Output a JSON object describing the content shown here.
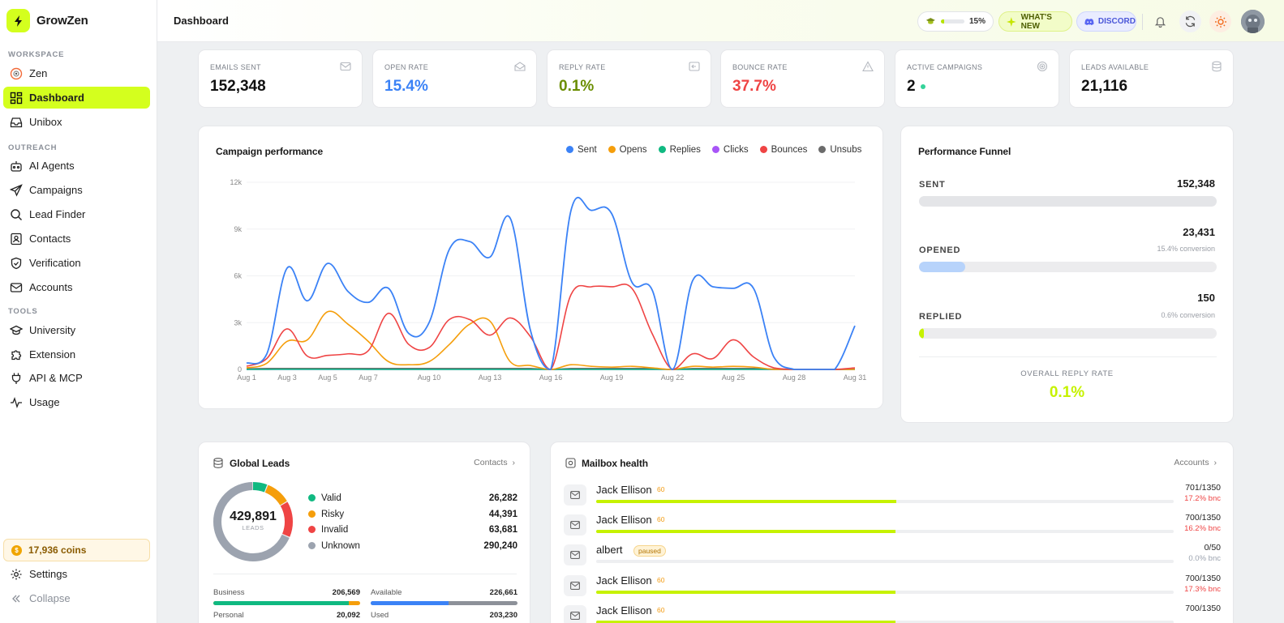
{
  "brand": {
    "name": "GrowZen"
  },
  "sidebar": {
    "sections": {
      "workspace": "WORKSPACE",
      "outreach": "OUTREACH",
      "tools": "TOOLS"
    },
    "items": [
      {
        "label": "Zen",
        "icon": "zen-icon"
      },
      {
        "label": "Dashboard",
        "icon": "dashboard-icon",
        "active": true
      },
      {
        "label": "Unibox",
        "icon": "inbox-icon"
      },
      {
        "label": "AI Agents",
        "icon": "robot-icon"
      },
      {
        "label": "Campaigns",
        "icon": "send-icon"
      },
      {
        "label": "Lead Finder",
        "icon": "search-icon"
      },
      {
        "label": "Contacts",
        "icon": "contacts-icon"
      },
      {
        "label": "Verification",
        "icon": "shield-check-icon"
      },
      {
        "label": "Accounts",
        "icon": "mail-icon"
      },
      {
        "label": "University",
        "icon": "graduation-icon"
      },
      {
        "label": "Extension",
        "icon": "puzzle-icon"
      },
      {
        "label": "API & MCP",
        "icon": "plug-icon"
      },
      {
        "label": "Usage",
        "icon": "activity-icon"
      }
    ],
    "coins": "17,936 coins",
    "settings": "Settings",
    "collapse": "Collapse"
  },
  "topbar": {
    "title": "Dashboard",
    "progress_pct": "15%",
    "progress_fraction": 0.15,
    "whats_new": "WHAT'S NEW",
    "discord": "DISCORD"
  },
  "stats": [
    {
      "label": "EMAILS SENT",
      "value": "152,348",
      "color": "#111111",
      "icon": "mail-icon"
    },
    {
      "label": "OPEN RATE",
      "value": "15.4%",
      "color": "#3b82f6",
      "icon": "mail-open-icon"
    },
    {
      "label": "REPLY RATE",
      "value": "0.1%",
      "color": "#6b8e00",
      "icon": "reply-icon"
    },
    {
      "label": "BOUNCE RATE",
      "value": "37.7%",
      "color": "#ef4444",
      "icon": "warning-icon"
    },
    {
      "label": "ACTIVE CAMPAIGNS",
      "value": "2",
      "color": "#111111",
      "icon": "target-icon"
    },
    {
      "label": "LEADS AVAILABLE",
      "value": "21,116",
      "color": "#111111",
      "icon": "database-icon"
    }
  ],
  "campaign": {
    "title": "Campaign performance",
    "legend": [
      {
        "name": "Sent",
        "color": "#3b82f6"
      },
      {
        "name": "Opens",
        "color": "#f59e0b"
      },
      {
        "name": "Replies",
        "color": "#10b981"
      },
      {
        "name": "Clicks",
        "color": "#a855f7"
      },
      {
        "name": "Bounces",
        "color": "#ef4444"
      },
      {
        "name": "Unsubs",
        "color": "#6b6b6b"
      }
    ]
  },
  "chart_data": {
    "type": "line",
    "x": [
      "Aug 1",
      "Aug 2",
      "Aug 3",
      "Aug 4",
      "Aug 5",
      "Aug 6",
      "Aug 7",
      "Aug 8",
      "Aug 9",
      "Aug 10",
      "Aug 11",
      "Aug 12",
      "Aug 13",
      "Aug 14",
      "Aug 15",
      "Aug 16",
      "Aug 17",
      "Aug 18",
      "Aug 19",
      "Aug 20",
      "Aug 21",
      "Aug 22",
      "Aug 23",
      "Aug 24",
      "Aug 25",
      "Aug 26",
      "Aug 27",
      "Aug 28",
      "Aug 29",
      "Aug 30",
      "Aug 31"
    ],
    "x_tick_labels": [
      "Aug 1",
      "Aug 3",
      "Aug 5",
      "Aug 7",
      "Aug 10",
      "Aug 13",
      "Aug 16",
      "Aug 19",
      "Aug 22",
      "Aug 25",
      "Aug 28",
      "Aug 31"
    ],
    "y_tick_labels": [
      "0",
      "3k",
      "6k",
      "9k",
      "12k"
    ],
    "ylim": [
      0,
      12000
    ],
    "grid": true,
    "legend_position": "top-right",
    "series": [
      {
        "name": "Sent",
        "color": "#3b82f6",
        "values": [
          400,
          1000,
          6500,
          4400,
          6800,
          5000,
          4300,
          5200,
          2300,
          3000,
          7700,
          8200,
          7200,
          9700,
          2500,
          0,
          10200,
          10200,
          10000,
          5600,
          5100,
          0,
          5700,
          5300,
          5200,
          5200,
          800,
          0,
          0,
          0,
          2800
        ]
      },
      {
        "name": "Opens",
        "color": "#f59e0b",
        "values": [
          100,
          400,
          1800,
          1900,
          3700,
          2900,
          1800,
          500,
          300,
          500,
          1600,
          2900,
          3100,
          500,
          250,
          0,
          300,
          200,
          150,
          200,
          100,
          0,
          200,
          150,
          200,
          150,
          0,
          0,
          0,
          0,
          0
        ]
      },
      {
        "name": "Replies",
        "color": "#10b981",
        "values": [
          5,
          5,
          10,
          10,
          10,
          10,
          5,
          5,
          5,
          5,
          5,
          5,
          5,
          5,
          5,
          0,
          5,
          5,
          5,
          5,
          5,
          0,
          5,
          5,
          5,
          5,
          0,
          0,
          0,
          0,
          0
        ]
      },
      {
        "name": "Clicks",
        "color": "#a855f7",
        "values": [
          0,
          0,
          0,
          0,
          0,
          0,
          0,
          0,
          0,
          0,
          0,
          0,
          0,
          0,
          0,
          0,
          0,
          0,
          0,
          0,
          0,
          0,
          0,
          0,
          0,
          0,
          0,
          0,
          0,
          0,
          0
        ]
      },
      {
        "name": "Bounces",
        "color": "#ef4444",
        "values": [
          200,
          700,
          2600,
          850,
          900,
          1000,
          1200,
          3600,
          1600,
          1400,
          3200,
          3200,
          2200,
          3300,
          2100,
          0,
          4800,
          5300,
          5300,
          5200,
          2300,
          0,
          1000,
          700,
          1900,
          800,
          100,
          0,
          0,
          0,
          100
        ]
      },
      {
        "name": "Unsubs",
        "color": "#6b6b6b",
        "values": [
          40,
          60,
          60,
          60,
          60,
          60,
          60,
          60,
          60,
          60,
          60,
          60,
          60,
          60,
          60,
          0,
          60,
          60,
          60,
          60,
          60,
          0,
          60,
          60,
          60,
          60,
          20,
          0,
          0,
          0,
          20
        ]
      }
    ]
  },
  "funnel": {
    "title": "Performance Funnel",
    "stages": [
      {
        "label": "SENT",
        "value": "152,348",
        "conversion": "",
        "fraction": 1.0,
        "color": "#e4e5e8"
      },
      {
        "label": "OPENED",
        "value": "23,431",
        "conversion": "15.4% conversion",
        "fraction": 0.154,
        "color": "#b7d3fb"
      },
      {
        "label": "REPLIED",
        "value": "150",
        "conversion": "0.6% conversion",
        "fraction": 0.006,
        "color": "#c6f200"
      }
    ],
    "overall_label": "OVERALL REPLY RATE",
    "overall_value": "0.1%"
  },
  "global_leads": {
    "title": "Global Leads",
    "link": "Contacts",
    "total": "429,891",
    "total_label": "LEADS",
    "rows": [
      {
        "name": "Valid",
        "value": "26,282",
        "num": 26282,
        "color": "#10b981"
      },
      {
        "name": "Risky",
        "value": "44,391",
        "num": 44391,
        "color": "#f59e0b"
      },
      {
        "name": "Invalid",
        "value": "63,681",
        "num": 63681,
        "color": "#ef4444"
      },
      {
        "name": "Unknown",
        "value": "290,240",
        "num": 290240,
        "color": "#9ca3af"
      }
    ],
    "business": {
      "label": "Business",
      "value": "206,569",
      "fraction": 0.92
    },
    "available": {
      "label": "Available",
      "value": "226,661",
      "fraction": 0.53
    },
    "personal": {
      "label": "Personal",
      "value": "20,092"
    },
    "used": {
      "label": "Used",
      "value": "203,230"
    }
  },
  "mailbox": {
    "title": "Mailbox health",
    "link": "Accounts",
    "rows": [
      {
        "name": "Jack Ellison",
        "badge": "60",
        "count": "701/1350",
        "bnc": "17.2% bnc",
        "fraction": 0.519,
        "bnc_color": "#ef4444",
        "paused": false
      },
      {
        "name": "Jack Ellison",
        "badge": "60",
        "count": "700/1350",
        "bnc": "16.2% bnc",
        "fraction": 0.518,
        "bnc_color": "#ef4444",
        "paused": false
      },
      {
        "name": "albert",
        "badge": "paused",
        "count": "0/50",
        "bnc": "0.0% bnc",
        "fraction": 0.0,
        "bnc_color": "#9ca3af",
        "paused": true
      },
      {
        "name": "Jack Ellison",
        "badge": "60",
        "count": "700/1350",
        "bnc": "17.3% bnc",
        "fraction": 0.518,
        "bnc_color": "#ef4444",
        "paused": false
      },
      {
        "name": "Jack Ellison",
        "badge": "60",
        "count": "700/1350",
        "bnc": "",
        "fraction": 0.518,
        "bnc_color": "#ef4444",
        "paused": false
      }
    ]
  }
}
